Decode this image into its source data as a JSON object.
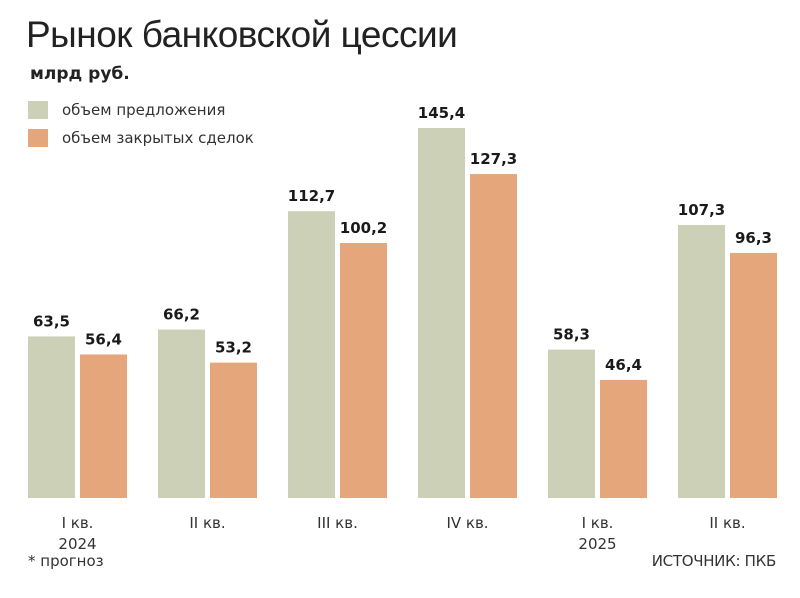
{
  "title": "Рынок банковской цессии",
  "unit": "млрд руб.",
  "note": "* прогноз",
  "source": "ИСТОЧНИК: ПКБ",
  "colors": {
    "offer": "#cbd0b6",
    "closed": "#e6a67b"
  },
  "chart_data": {
    "type": "bar",
    "title": "Рынок банковской цессии",
    "ylabel": "млрд руб.",
    "categories": [
      "I кв.",
      "II кв.",
      "III кв.",
      "IV кв.",
      "I кв.",
      "II кв."
    ],
    "year_labels": [
      {
        "text": "2024",
        "under_category": 0
      },
      {
        "text": "2025",
        "under_category": 4
      }
    ],
    "series": [
      {
        "name": "объем предложения",
        "values": [
          63.5,
          66.2,
          112.7,
          145.4,
          58.3,
          107.3
        ],
        "labels": [
          "63,5",
          "66,2",
          "112,7",
          "145,4",
          "58,3",
          "107,3"
        ]
      },
      {
        "name": "объем закрытых сделок",
        "values": [
          56.4,
          53.2,
          100.2,
          127.3,
          46.4,
          96.3
        ],
        "labels": [
          "56,4",
          "53,2",
          "100,2",
          "127,3",
          "46,4",
          "96,3"
        ]
      }
    ],
    "ylim": [
      0,
      145.4
    ],
    "grid": false,
    "legend": "top-left"
  }
}
